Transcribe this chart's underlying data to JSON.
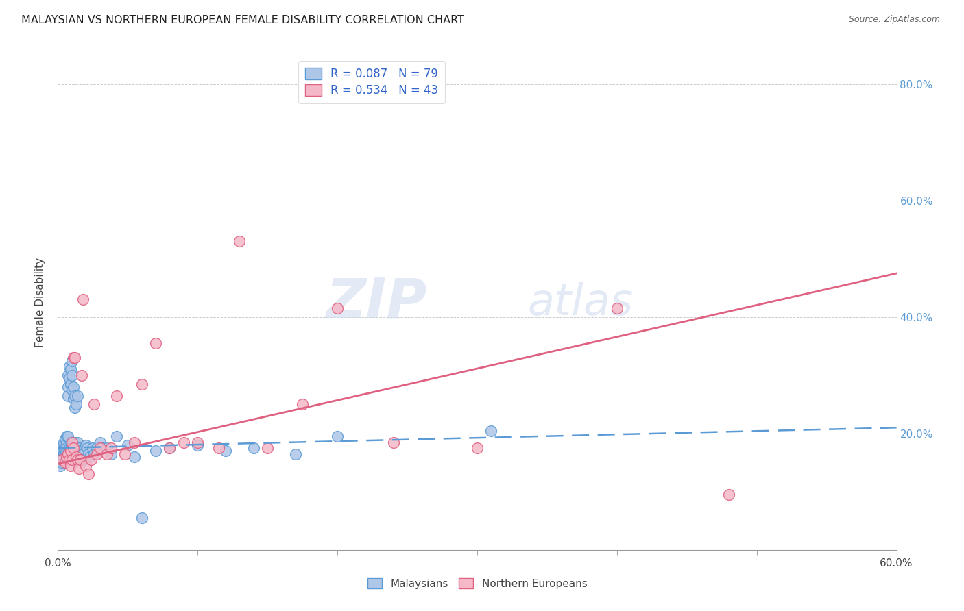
{
  "title": "MALAYSIAN VS NORTHERN EUROPEAN FEMALE DISABILITY CORRELATION CHART",
  "source": "Source: ZipAtlas.com",
  "ylabel": "Female Disability",
  "xmin": 0.0,
  "xmax": 0.6,
  "ymin": 0.0,
  "ymax": 0.85,
  "yticks": [
    0.0,
    0.2,
    0.4,
    0.6,
    0.8
  ],
  "legend1_r": "R = 0.087",
  "legend1_n": "N = 79",
  "legend2_r": "R = 0.534",
  "legend2_n": "N = 43",
  "legend1_color": "#aec6e8",
  "legend2_color": "#f4b8c8",
  "line1_color": "#5b9bd5",
  "line2_color": "#e06080",
  "watermark_zip": "ZIP",
  "watermark_atlas": "atlas",
  "malaysians_x": [
    0.001,
    0.002,
    0.002,
    0.002,
    0.003,
    0.003,
    0.003,
    0.003,
    0.004,
    0.004,
    0.004,
    0.004,
    0.004,
    0.005,
    0.005,
    0.005,
    0.005,
    0.005,
    0.006,
    0.006,
    0.006,
    0.006,
    0.007,
    0.007,
    0.007,
    0.007,
    0.008,
    0.008,
    0.008,
    0.009,
    0.009,
    0.009,
    0.01,
    0.01,
    0.01,
    0.01,
    0.011,
    0.011,
    0.011,
    0.012,
    0.012,
    0.012,
    0.013,
    0.013,
    0.014,
    0.014,
    0.014,
    0.015,
    0.015,
    0.016,
    0.016,
    0.017,
    0.017,
    0.018,
    0.018,
    0.019,
    0.02,
    0.021,
    0.022,
    0.023,
    0.025,
    0.026,
    0.028,
    0.03,
    0.032,
    0.035,
    0.038,
    0.042,
    0.05,
    0.055,
    0.06,
    0.07,
    0.08,
    0.1,
    0.12,
    0.14,
    0.17,
    0.2,
    0.31
  ],
  "malaysians_y": [
    0.155,
    0.16,
    0.145,
    0.17,
    0.165,
    0.175,
    0.155,
    0.15,
    0.175,
    0.185,
    0.165,
    0.16,
    0.155,
    0.175,
    0.19,
    0.17,
    0.165,
    0.16,
    0.185,
    0.195,
    0.175,
    0.165,
    0.3,
    0.28,
    0.265,
    0.195,
    0.315,
    0.295,
    0.175,
    0.31,
    0.285,
    0.175,
    0.325,
    0.3,
    0.275,
    0.185,
    0.28,
    0.26,
    0.185,
    0.265,
    0.245,
    0.185,
    0.25,
    0.175,
    0.265,
    0.185,
    0.175,
    0.175,
    0.165,
    0.17,
    0.16,
    0.165,
    0.155,
    0.165,
    0.155,
    0.155,
    0.18,
    0.175,
    0.165,
    0.16,
    0.175,
    0.165,
    0.175,
    0.185,
    0.175,
    0.175,
    0.165,
    0.195,
    0.18,
    0.16,
    0.055,
    0.17,
    0.175,
    0.18,
    0.17,
    0.175,
    0.165,
    0.195,
    0.205
  ],
  "northern_x": [
    0.003,
    0.005,
    0.006,
    0.007,
    0.008,
    0.009,
    0.009,
    0.01,
    0.01,
    0.011,
    0.011,
    0.012,
    0.013,
    0.014,
    0.015,
    0.016,
    0.017,
    0.018,
    0.02,
    0.022,
    0.024,
    0.026,
    0.028,
    0.03,
    0.035,
    0.038,
    0.042,
    0.048,
    0.055,
    0.06,
    0.07,
    0.08,
    0.09,
    0.1,
    0.115,
    0.13,
    0.15,
    0.175,
    0.2,
    0.24,
    0.3,
    0.4,
    0.48
  ],
  "northern_y": [
    0.155,
    0.15,
    0.16,
    0.165,
    0.155,
    0.17,
    0.145,
    0.185,
    0.155,
    0.175,
    0.33,
    0.33,
    0.16,
    0.155,
    0.14,
    0.155,
    0.3,
    0.43,
    0.145,
    0.13,
    0.155,
    0.25,
    0.165,
    0.175,
    0.165,
    0.175,
    0.265,
    0.165,
    0.185,
    0.285,
    0.355,
    0.175,
    0.185,
    0.185,
    0.175,
    0.53,
    0.175,
    0.25,
    0.415,
    0.185,
    0.175,
    0.415,
    0.095
  ]
}
